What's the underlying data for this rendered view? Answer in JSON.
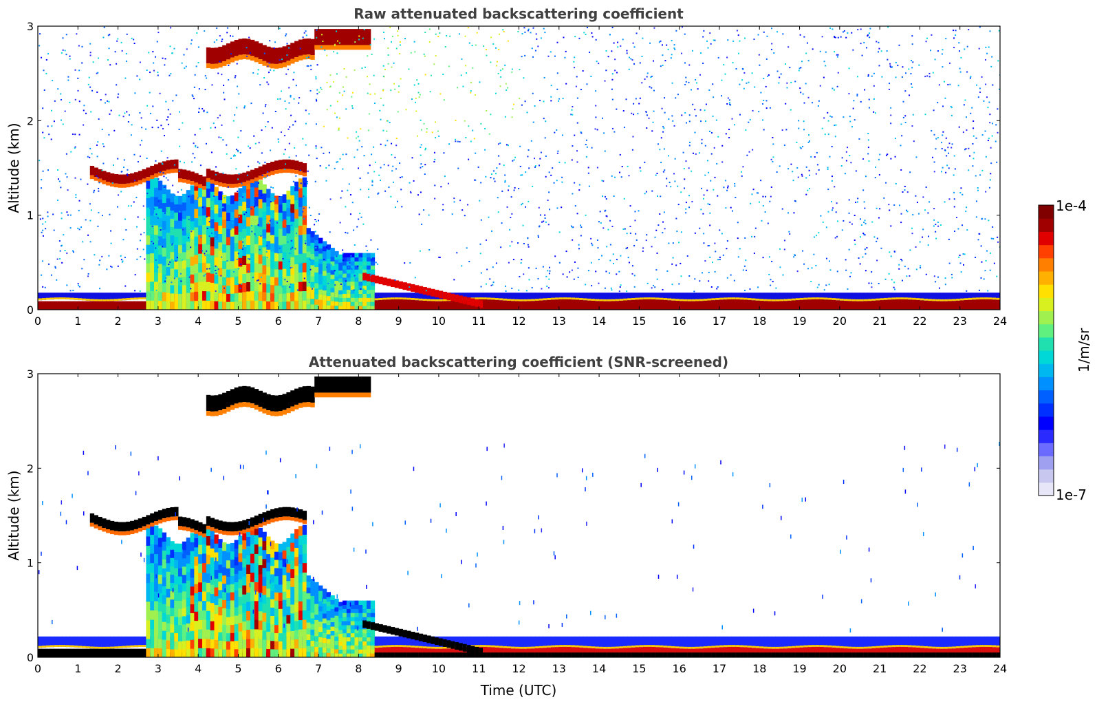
{
  "chart_data": [
    {
      "type": "heatmap",
      "title": "Raw attenuated backscattering coefficient",
      "xlabel": "",
      "ylabel": "Altitude (km)",
      "xlim": [
        0,
        24
      ],
      "ylim": [
        0,
        3
      ],
      "x_ticks": [
        "0",
        "1",
        "2",
        "3",
        "4",
        "5",
        "6",
        "7",
        "8",
        "9",
        "10",
        "11",
        "12",
        "13",
        "14",
        "15",
        "16",
        "17",
        "18",
        "19",
        "20",
        "21",
        "22",
        "23",
        "24"
      ],
      "y_ticks": [
        "0",
        "1",
        "2",
        "3"
      ],
      "grid": false,
      "features": [
        {
          "name": "surface layer",
          "time": [
            0,
            24
          ],
          "altitude_km": [
            0,
            0.1
          ],
          "level": "1e-4"
        },
        {
          "name": "boundary layer top",
          "time": [
            0,
            24
          ],
          "altitude_km": [
            0.1,
            0.2
          ],
          "level": "low"
        },
        {
          "name": "mid-level cloud",
          "time": [
            1.3,
            6.6
          ],
          "altitude_km": [
            1.35,
            1.6
          ],
          "level": "1e-4"
        },
        {
          "name": "upper cloud",
          "time": [
            4.2,
            8.2
          ],
          "altitude_km": [
            2.6,
            3.0
          ],
          "level": "1e-4"
        },
        {
          "name": "residual layer descent",
          "time": [
            8.0,
            11.0
          ],
          "altitude_km": [
            0.05,
            0.4
          ],
          "level": "high"
        },
        {
          "name": "background noise",
          "time": [
            0,
            24
          ],
          "altitude_km": [
            0.2,
            3.0
          ],
          "level": "low-noisy"
        }
      ]
    },
    {
      "type": "heatmap",
      "title": "Attenuated backscattering coefficient (SNR-screened)",
      "xlabel": "Time (UTC)",
      "ylabel": "Altitude (km)",
      "xlim": [
        0,
        24
      ],
      "ylim": [
        0,
        3
      ],
      "x_ticks": [
        "0",
        "1",
        "2",
        "3",
        "4",
        "5",
        "6",
        "7",
        "8",
        "9",
        "10",
        "11",
        "12",
        "13",
        "14",
        "15",
        "16",
        "17",
        "18",
        "19",
        "20",
        "21",
        "22",
        "23",
        "24"
      ],
      "y_ticks": [
        "0",
        "1",
        "2",
        "3"
      ],
      "grid": false,
      "features": [
        {
          "name": "surface layer",
          "time": [
            0,
            24
          ],
          "altitude_km": [
            0,
            0.1
          ],
          "level": "1e-4"
        },
        {
          "name": "boundary layer top",
          "time": [
            0,
            24
          ],
          "altitude_km": [
            0.1,
            0.22
          ],
          "level": "low"
        },
        {
          "name": "mid-level cloud",
          "time": [
            1.3,
            6.6
          ],
          "altitude_km": [
            1.35,
            1.6
          ],
          "level": "saturated"
        },
        {
          "name": "upper cloud",
          "time": [
            4.2,
            8.2
          ],
          "altitude_km": [
            2.6,
            3.0
          ],
          "level": "saturated"
        },
        {
          "name": "residual layer descent",
          "time": [
            8.0,
            11.0
          ],
          "altitude_km": [
            0.05,
            0.4
          ],
          "level": "saturated"
        }
      ]
    }
  ],
  "colorbar": {
    "label": "1/m/sr",
    "max_label": "1e-4",
    "min_label": "1e-7",
    "colors": [
      "#e6e6f8",
      "#c7c7f0",
      "#a0a0f0",
      "#6b6bff",
      "#2a2aff",
      "#0000ff",
      "#0030ff",
      "#0060ff",
      "#0090ff",
      "#00b8f0",
      "#00d8d8",
      "#20e0b0",
      "#60f080",
      "#a0f050",
      "#d8f020",
      "#ffe000",
      "#ffb000",
      "#ff8000",
      "#ff4000",
      "#e00000",
      "#a00000",
      "#800000"
    ]
  },
  "colors": {
    "saturated": "#000000",
    "background": "#ffffff",
    "title": "#404040"
  }
}
